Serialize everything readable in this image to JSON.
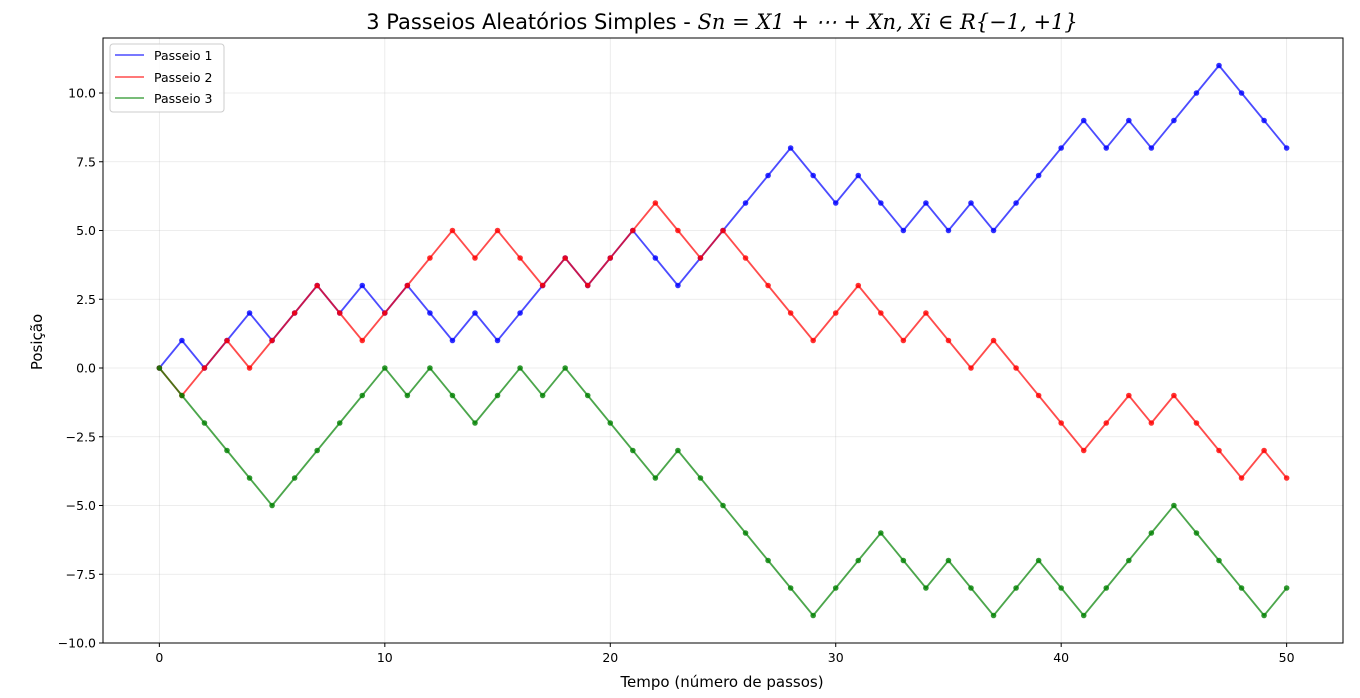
{
  "chart_data": {
    "type": "line",
    "title": "3 Passeios Aleatórios Simples - S_n = X_1 + ⋯ + X_n,  X_i ∈ R{−1, +1}",
    "title_parts": {
      "prefix": "3 Passeios Aleatórios Simples - ",
      "formula": "Sn = X1 + ⋯ + Xn,   Xi ∈ R{−1, +1}"
    },
    "xlabel": "Tempo (número de passos)",
    "ylabel": "Posição",
    "xlim": [
      -2.5,
      52.5
    ],
    "ylim": [
      -10.0,
      12.0
    ],
    "xticks": [
      0,
      10,
      20,
      30,
      40,
      50
    ],
    "xtick_labels": [
      "0",
      "10",
      "20",
      "30",
      "40",
      "50"
    ],
    "yticks": [
      -10.0,
      -7.5,
      -5.0,
      -2.5,
      0.0,
      2.5,
      5.0,
      7.5,
      10.0
    ],
    "ytick_labels": [
      "−10.0",
      "−7.5",
      "−5.0",
      "−2.5",
      "0.0",
      "2.5",
      "5.0",
      "7.5",
      "10.0"
    ],
    "grid": true,
    "legend_position": "top-left",
    "x": [
      0,
      1,
      2,
      3,
      4,
      5,
      6,
      7,
      8,
      9,
      10,
      11,
      12,
      13,
      14,
      15,
      16,
      17,
      18,
      19,
      20,
      21,
      22,
      23,
      24,
      25,
      26,
      27,
      28,
      29,
      30,
      31,
      32,
      33,
      34,
      35,
      36,
      37,
      38,
      39,
      40,
      41,
      42,
      43,
      44,
      45,
      46,
      47,
      48,
      49,
      50
    ],
    "series": [
      {
        "name": "Passeio 1",
        "color": "#0000ff",
        "values": [
          0,
          1,
          0,
          1,
          2,
          1,
          2,
          3,
          2,
          3,
          2,
          3,
          2,
          1,
          2,
          1,
          2,
          3,
          4,
          3,
          4,
          5,
          4,
          3,
          4,
          5,
          6,
          7,
          8,
          7,
          6,
          7,
          6,
          5,
          6,
          5,
          6,
          5,
          6,
          7,
          8,
          9,
          8,
          9,
          8,
          9,
          10,
          11,
          10,
          9,
          8
        ]
      },
      {
        "name": "Passeio 2",
        "color": "#ff0000",
        "values": [
          0,
          -1,
          0,
          1,
          0,
          1,
          2,
          3,
          2,
          1,
          2,
          3,
          4,
          5,
          4,
          5,
          4,
          3,
          4,
          3,
          4,
          5,
          6,
          5,
          4,
          5,
          4,
          3,
          2,
          1,
          2,
          3,
          2,
          1,
          2,
          1,
          0,
          1,
          0,
          -1,
          -2,
          -3,
          -2,
          -1,
          -2,
          -1,
          -2,
          -3,
          -4,
          -3,
          -4
        ]
      },
      {
        "name": "Passeio 3",
        "color": "#008000",
        "values": [
          0,
          -1,
          -2,
          -3,
          -4,
          -5,
          -4,
          -3,
          -2,
          -1,
          0,
          -1,
          0,
          -1,
          -2,
          -1,
          0,
          -1,
          0,
          -1,
          -2,
          -3,
          -4,
          -3,
          -4,
          -5,
          -6,
          -7,
          -8,
          -9,
          -8,
          -7,
          -6,
          -7,
          -8,
          -7,
          -8,
          -9,
          -8,
          -7,
          -8,
          -9,
          -8,
          -7,
          -6,
          -5,
          -6,
          -7,
          -8,
          -9,
          -8
        ]
      }
    ]
  }
}
